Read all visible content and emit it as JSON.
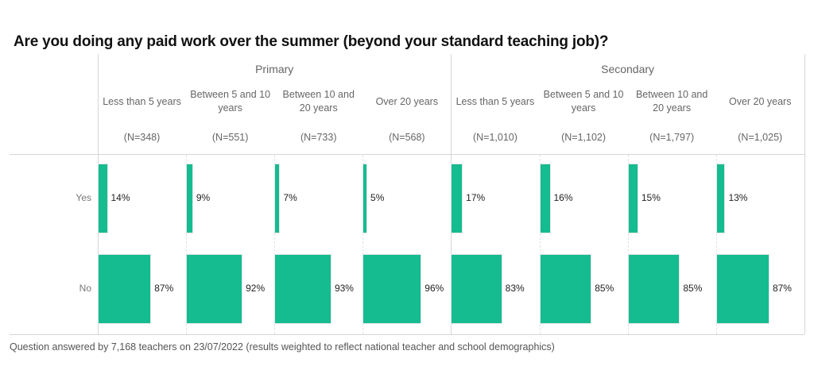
{
  "title": "Are you doing any paid work over the summer (beyond your standard teaching job)?",
  "footnote": "Question answered by 7,168 teachers on 23/07/2022 (results weighted to reflect national teacher and school demographics)",
  "colors": {
    "bar": "#14bc90",
    "grid": "#d6d6d6",
    "text_muted": "#666666"
  },
  "groups": [
    {
      "label": "Primary"
    },
    {
      "label": "Secondary"
    }
  ],
  "rows": [
    {
      "label": "Yes"
    },
    {
      "label": "No"
    }
  ],
  "columns": [
    {
      "group": "Primary",
      "label": "Less than 5 years",
      "n": "(N=348)",
      "yes": 14,
      "no": 87,
      "yes_label": "14%",
      "no_label": "87%"
    },
    {
      "group": "Primary",
      "label": "Between 5 and 10 years",
      "n": "(N=551)",
      "yes": 9,
      "no": 92,
      "yes_label": "9%",
      "no_label": "92%"
    },
    {
      "group": "Primary",
      "label": "Between 10 and 20 years",
      "n": "(N=733)",
      "yes": 7,
      "no": 93,
      "yes_label": "7%",
      "no_label": "93%"
    },
    {
      "group": "Primary",
      "label": "Over 20 years",
      "n": "(N=568)",
      "yes": 5,
      "no": 96,
      "yes_label": "5%",
      "no_label": "96%"
    },
    {
      "group": "Secondary",
      "label": "Less than 5 years",
      "n": "(N=1,010)",
      "yes": 17,
      "no": 83,
      "yes_label": "17%",
      "no_label": "83%"
    },
    {
      "group": "Secondary",
      "label": "Between 5 and 10 years",
      "n": "(N=1,102)",
      "yes": 16,
      "no": 85,
      "yes_label": "16%",
      "no_label": "85%"
    },
    {
      "group": "Secondary",
      "label": "Between 10 and 20 years",
      "n": "(N=1,797)",
      "yes": 15,
      "no": 85,
      "yes_label": "15%",
      "no_label": "85%"
    },
    {
      "group": "Secondary",
      "label": "Over 20 years",
      "n": "(N=1,025)",
      "yes": 13,
      "no": 87,
      "yes_label": "13%",
      "no_label": "87%"
    }
  ],
  "chart_data": {
    "type": "bar",
    "orientation": "horizontal",
    "title": "Are you doing any paid work over the summer (beyond your standard teaching job)?",
    "xlabel": "",
    "ylabel": "",
    "xlim": [
      0,
      100
    ],
    "grid": true,
    "legend": null,
    "row_categories": [
      "Yes",
      "No"
    ],
    "panel_groups": [
      "Primary",
      "Secondary"
    ],
    "categories": [
      "Primary - Less than 5 years (N=348)",
      "Primary - Between 5 and 10 years (N=551)",
      "Primary - Between 10 and 20 years (N=733)",
      "Primary - Over 20 years (N=568)",
      "Secondary - Less than 5 years (N=1,010)",
      "Secondary - Between 5 and 10 years (N=1,102)",
      "Secondary - Between 10 and 20 years (N=1,797)",
      "Secondary - Over 20 years (N=1,025)"
    ],
    "series": [
      {
        "name": "Yes",
        "values": [
          14,
          9,
          7,
          5,
          17,
          16,
          15,
          13
        ]
      },
      {
        "name": "No",
        "values": [
          87,
          92,
          93,
          96,
          83,
          85,
          85,
          87
        ]
      }
    ],
    "unit": "%",
    "annotation": "Question answered by 7,168 teachers on 23/07/2022 (results weighted to reflect national teacher and school demographics)"
  }
}
